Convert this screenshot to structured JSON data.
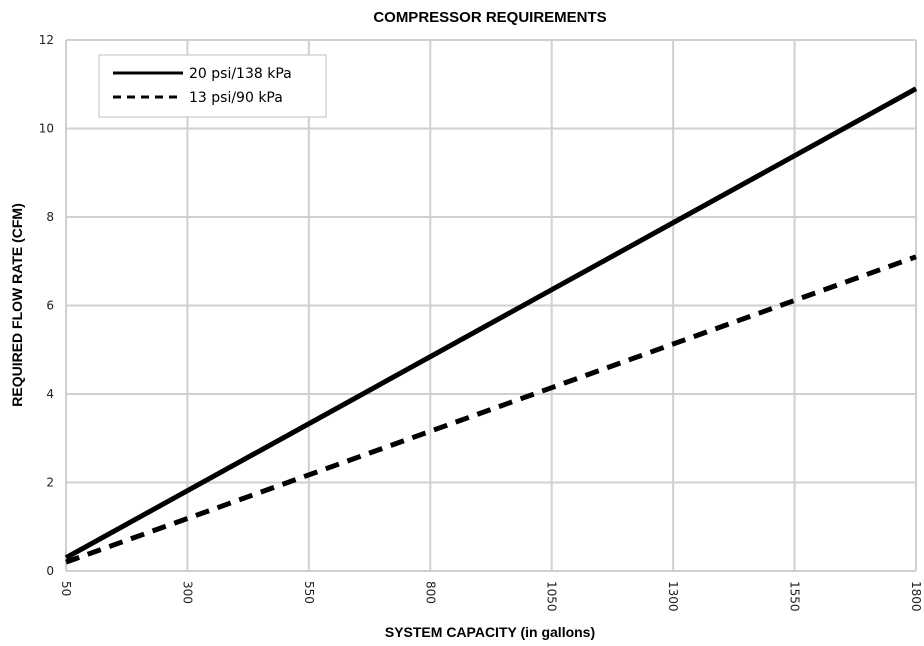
{
  "chart_data": {
    "type": "line",
    "title": "COMPRESSOR REQUIREMENTS",
    "xlabel": "SYSTEM CAPACITY (in gallons)",
    "ylabel": "REQUIRED FLOW RATE (CFM)",
    "x_ticks": [
      "50",
      "300",
      "550",
      "800",
      "1050",
      "1300",
      "1550",
      "1800"
    ],
    "y_ticks": [
      "0",
      "2",
      "4",
      "6",
      "8",
      "10",
      "12"
    ],
    "xlim": [
      50,
      1800
    ],
    "ylim": [
      0,
      12
    ],
    "grid": true,
    "legend_position": "top-left",
    "series": [
      {
        "name": "20 psi/138 kPa",
        "style": "solid",
        "color": "#000000",
        "x": [
          50,
          1800
        ],
        "y": [
          0.3,
          10.9
        ]
      },
      {
        "name": "13 psi/90 kPa",
        "style": "dashed",
        "color": "#000000",
        "x": [
          50,
          1800
        ],
        "y": [
          0.2,
          7.1
        ]
      }
    ]
  }
}
